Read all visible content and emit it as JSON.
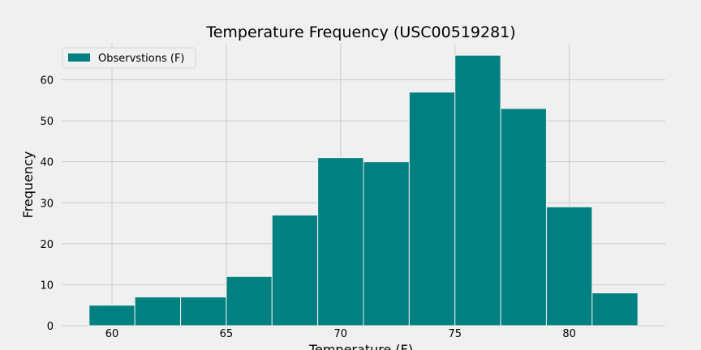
{
  "chart_data": {
    "type": "bar",
    "title": "Temperature Frequency (USC00519281)",
    "xlabel": "Temperature (F)",
    "ylabel": "Frequency",
    "xlim": [
      57.8,
      84.2
    ],
    "ylim": [
      0,
      69
    ],
    "x_ticks": [
      60,
      65,
      70,
      75,
      80
    ],
    "y_ticks": [
      0,
      10,
      20,
      30,
      40,
      50,
      60
    ],
    "grid": true,
    "legend": {
      "placement": "top-left",
      "entries": [
        "Observstions (F)"
      ]
    },
    "bin_edges": [
      59,
      61,
      63,
      65,
      67,
      69,
      71,
      73,
      75,
      77,
      79,
      81,
      83
    ],
    "series": [
      {
        "name": "Observstions (F)",
        "color": "#008080",
        "values": [
          5,
          7,
          7,
          12,
          27,
          41,
          40,
          57,
          66,
          53,
          29,
          8
        ]
      }
    ]
  },
  "colors": {
    "background": "#f0f0f0",
    "grid": "#cbcbcb",
    "bar": "#008080",
    "bar_edge": "#f0f0f0"
  }
}
